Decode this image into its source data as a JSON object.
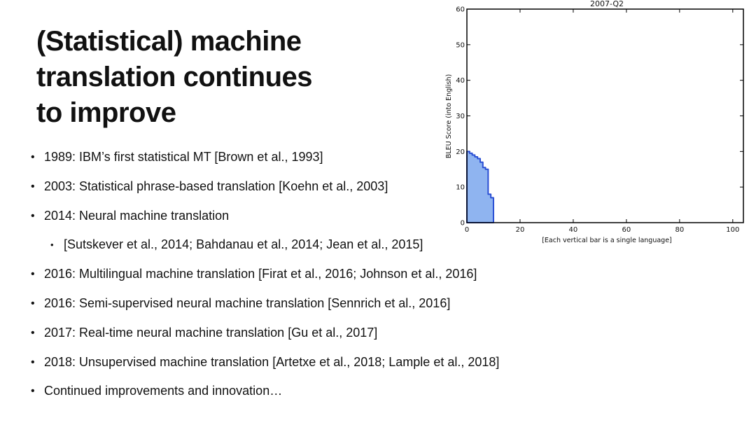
{
  "slide": {
    "title_lines": [
      "(Statistical) machine",
      "translation continues",
      "to improve"
    ],
    "bullets": [
      {
        "text": "1989: IBM’s first statistical MT [Brown et al., 1993]",
        "level": 1
      },
      {
        "text": "2003: Statistical phrase-based translation [Koehn et al., 2003]",
        "level": 1
      },
      {
        "text": "2014: Neural machine translation",
        "level": 1
      },
      {
        "text": "[Sutskever et al., 2014; Bahdanau et al., 2014; Jean et al., 2015]",
        "level": 2
      },
      {
        "text": "2016: Multilingual machine translation [Firat et al., 2016; Johnson et al., 2016]",
        "level": 1
      },
      {
        "text": "2016: Semi-supervised neural machine translation [Sennrich et al., 2016]",
        "level": 1
      },
      {
        "text": "2017: Real-time neural machine translation [Gu et al., 2017]",
        "level": 1
      },
      {
        "text": "2018: Unsupervised machine translation [Artetxe et al., 2018; Lample et al., 2018]",
        "level": 1
      },
      {
        "text": "Continued improvements and innovation…",
        "level": 1
      }
    ]
  },
  "chart_data": {
    "type": "area",
    "title": "2007-Q2",
    "xlabel": "[Each vertical bar is a single language]",
    "ylabel": "BLEU Score (into English)",
    "xlim": [
      0,
      104
    ],
    "ylim": [
      0,
      60
    ],
    "xticks": [
      0,
      20,
      40,
      60,
      80,
      100
    ],
    "yticks": [
      0,
      10,
      20,
      30,
      40,
      50,
      60
    ],
    "x": [
      0,
      1,
      2,
      3,
      4,
      5,
      6,
      7,
      8,
      9,
      10
    ],
    "values": [
      20,
      19.5,
      19,
      18.5,
      18,
      17,
      15.5,
      15,
      8,
      7,
      0
    ],
    "fill_color": "#8fb4f0",
    "line_color": "#2a4fd4",
    "grid": false
  }
}
